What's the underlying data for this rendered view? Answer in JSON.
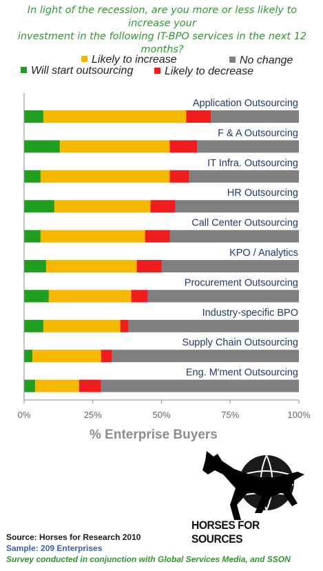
{
  "title_line1": "In light of the recession, are you more or less likely to increase your",
  "title_line2": "investment in the following IT-BPO services in the next 12 months?",
  "legend": [
    {
      "label": "Likely to increase",
      "color": "#f5b800"
    },
    {
      "label": "No change",
      "color": "#7f7f7f"
    },
    {
      "label": "Will start outsourcing",
      "color": "#1f9e1f"
    },
    {
      "label": "Likely to decrease",
      "color": "#ee1c1c"
    }
  ],
  "chart_data": {
    "type": "bar",
    "orientation": "horizontal",
    "stacked": true,
    "percent": true,
    "xlabel": "% Enterprise Buyers",
    "xlim": [
      0,
      100
    ],
    "xticks": [
      "0%",
      "25%",
      "50%",
      "75%",
      "100%"
    ],
    "grid": false,
    "categories": [
      "Application Outsourcing",
      "F & A Outsourcing",
      "IT Infra. Outsourcing",
      "HR Outsourcing",
      "Call Center Outsourcing",
      "KPO / Analytics",
      "Procurement Outsourcing",
      "Industry-specific BPO",
      "Supply Chain Outsourcing",
      "Eng. M'ment Outsourcing"
    ],
    "series": [
      {
        "name": "Will start outsourcing",
        "color": "#1f9e1f",
        "values": [
          7,
          13,
          6,
          11,
          6,
          8,
          9,
          7,
          3,
          4
        ]
      },
      {
        "name": "Likely to increase",
        "color": "#f5b800",
        "values": [
          52,
          40,
          47,
          35,
          38,
          33,
          30,
          28,
          25,
          16
        ]
      },
      {
        "name": "Likely to decrease",
        "color": "#ee1c1c",
        "values": [
          9,
          10,
          7,
          9,
          9,
          9,
          6,
          3,
          4,
          8
        ]
      },
      {
        "name": "No change",
        "color": "#7f7f7f",
        "values": [
          32,
          37,
          40,
          45,
          47,
          50,
          55,
          62,
          68,
          72
        ]
      }
    ]
  },
  "logo_text": "HORSES FOR SOURCES",
  "footer": {
    "source": "Source:  Horses for Research 2010",
    "sample": "Sample:  209 Enterprises",
    "survey": "Survey conducted  in conjunction with Global Services Media, and SSON"
  }
}
